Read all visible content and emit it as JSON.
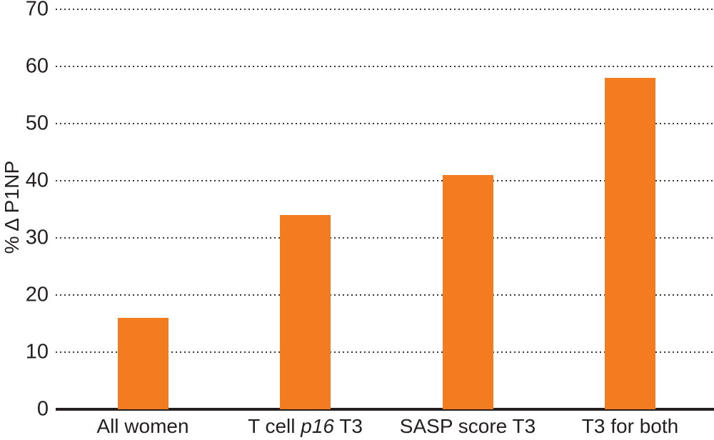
{
  "chart_data": {
    "type": "bar",
    "title": "",
    "xlabel": "",
    "ylabel": "% Δ P1NP",
    "categories": [
      "All women",
      "T cell p16 T3",
      "SASP score T3",
      "T3 for both"
    ],
    "categories_rich": [
      {
        "pre": "All women",
        "italic": "",
        "post": ""
      },
      {
        "pre": "T cell ",
        "italic": "p16",
        "post": " T3"
      },
      {
        "pre": "SASP score T3",
        "italic": "",
        "post": ""
      },
      {
        "pre": "T3 for both",
        "italic": "",
        "post": ""
      }
    ],
    "values": [
      16,
      34,
      41,
      58
    ],
    "yticks": [
      0,
      10,
      20,
      30,
      40,
      50,
      60,
      70
    ],
    "ylim": [
      0,
      70
    ],
    "grid": "horizontal-dotted",
    "legend_position": "none",
    "colors": {
      "bar": "#f37c21",
      "axis": "#231f20",
      "text": "#231f20",
      "gridline": "#39393b",
      "background": "#ffffff"
    }
  }
}
